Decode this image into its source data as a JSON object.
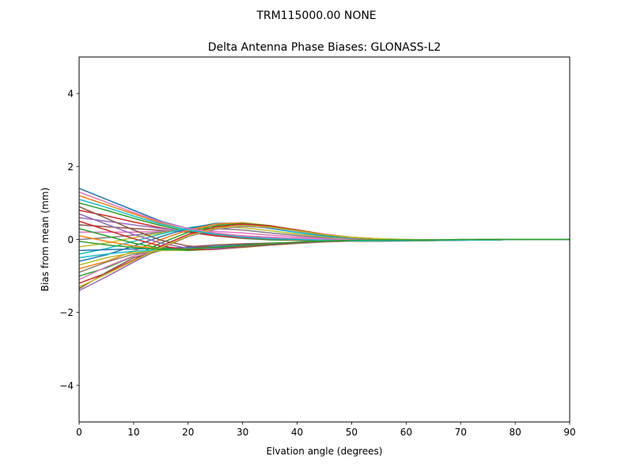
{
  "chart_data": {
    "type": "line",
    "suptitle": "TRM115000.00    NONE",
    "title": "Delta Antenna Phase Biases: GLONASS-L2",
    "xlabel": "Elvation angle (degrees)",
    "ylabel": "Bias from mean (mm)",
    "xlim": [
      0,
      90
    ],
    "ylim": [
      -5,
      5
    ],
    "xticks": [
      0,
      10,
      20,
      30,
      40,
      50,
      60,
      70,
      80,
      90
    ],
    "yticks": [
      -4,
      -2,
      0,
      2,
      4
    ],
    "xtick_labels": [
      "0",
      "10",
      "20",
      "30",
      "40",
      "50",
      "60",
      "70",
      "80",
      "90"
    ],
    "ytick_labels": [
      "−4",
      "−2",
      "0",
      "2",
      "4"
    ],
    "grid": false,
    "x": [
      0,
      5,
      10,
      15,
      20,
      25,
      30,
      35,
      40,
      45,
      50,
      55,
      60,
      65,
      70,
      75,
      80,
      85,
      90
    ],
    "series": [
      {
        "color": "#1f77b4",
        "values": [
          1.4,
          1.1,
          0.8,
          0.5,
          0.3,
          0.15,
          0.05,
          0.0,
          -0.02,
          -0.04,
          -0.05,
          -0.05,
          -0.04,
          -0.03,
          -0.02,
          -0.01,
          0.0,
          0.0,
          0.0
        ]
      },
      {
        "color": "#ff7f0e",
        "values": [
          1.2,
          0.95,
          0.7,
          0.45,
          0.25,
          0.12,
          0.04,
          0.0,
          -0.02,
          -0.03,
          -0.04,
          -0.04,
          -0.04,
          -0.03,
          -0.02,
          -0.01,
          0.0,
          0.0,
          0.0
        ]
      },
      {
        "color": "#2ca02c",
        "values": [
          1.0,
          0.8,
          0.58,
          0.38,
          0.22,
          0.1,
          0.03,
          -0.01,
          -0.02,
          -0.03,
          -0.04,
          -0.04,
          -0.03,
          -0.03,
          -0.02,
          -0.01,
          0.0,
          0.0,
          0.0
        ]
      },
      {
        "color": "#d62728",
        "values": [
          0.8,
          0.65,
          0.48,
          0.32,
          0.2,
          0.1,
          0.04,
          0.01,
          -0.01,
          -0.02,
          -0.03,
          -0.03,
          -0.03,
          -0.02,
          -0.02,
          -0.01,
          0.0,
          0.0,
          0.0
        ]
      },
      {
        "color": "#9467bd",
        "values": [
          0.6,
          0.5,
          0.4,
          0.3,
          0.22,
          0.14,
          0.08,
          0.04,
          0.01,
          -0.01,
          -0.02,
          -0.03,
          -0.03,
          -0.02,
          -0.02,
          -0.01,
          0.0,
          0.0,
          0.0
        ]
      },
      {
        "color": "#8c564b",
        "values": [
          0.4,
          0.35,
          0.3,
          0.25,
          0.2,
          0.15,
          0.1,
          0.06,
          0.03,
          0.01,
          -0.01,
          -0.02,
          -0.02,
          -0.02,
          -0.01,
          -0.01,
          0.0,
          0.0,
          0.0
        ]
      },
      {
        "color": "#e377c2",
        "values": [
          0.2,
          0.2,
          0.2,
          0.22,
          0.24,
          0.22,
          0.18,
          0.12,
          0.07,
          0.03,
          0.0,
          -0.01,
          -0.02,
          -0.02,
          -0.01,
          -0.01,
          0.0,
          0.0,
          0.0
        ]
      },
      {
        "color": "#7f7f7f",
        "values": [
          0.0,
          0.05,
          0.12,
          0.2,
          0.28,
          0.3,
          0.26,
          0.18,
          0.11,
          0.05,
          0.01,
          -0.01,
          -0.02,
          -0.02,
          -0.01,
          -0.01,
          0.0,
          0.0,
          0.0
        ]
      },
      {
        "color": "#bcbd22",
        "values": [
          -0.2,
          -0.1,
          0.05,
          0.18,
          0.3,
          0.36,
          0.32,
          0.24,
          0.15,
          0.07,
          0.02,
          -0.01,
          -0.02,
          -0.02,
          -0.01,
          -0.01,
          0.0,
          0.0,
          0.0
        ]
      },
      {
        "color": "#17becf",
        "values": [
          -0.4,
          -0.25,
          -0.05,
          0.15,
          0.32,
          0.42,
          0.4,
          0.3,
          0.19,
          0.09,
          0.03,
          0.0,
          -0.02,
          -0.02,
          -0.01,
          -0.01,
          0.0,
          0.0,
          0.0
        ]
      },
      {
        "color": "#1f77b4",
        "values": [
          -0.6,
          -0.42,
          -0.18,
          0.08,
          0.3,
          0.44,
          0.45,
          0.36,
          0.23,
          0.11,
          0.04,
          0.0,
          -0.02,
          -0.02,
          -0.01,
          -0.01,
          0.0,
          0.0,
          0.0
        ]
      },
      {
        "color": "#ff7f0e",
        "values": [
          -0.8,
          -0.6,
          -0.32,
          0.0,
          0.26,
          0.42,
          0.46,
          0.38,
          0.25,
          0.13,
          0.05,
          0.01,
          -0.01,
          -0.02,
          -0.01,
          -0.01,
          0.0,
          0.0,
          0.0
        ]
      },
      {
        "color": "#2ca02c",
        "values": [
          -1.0,
          -0.78,
          -0.46,
          -0.1,
          0.2,
          0.38,
          0.44,
          0.38,
          0.26,
          0.14,
          0.06,
          0.01,
          -0.01,
          -0.02,
          -0.01,
          -0.01,
          0.0,
          0.0,
          0.0
        ]
      },
      {
        "color": "#d62728",
        "values": [
          -1.2,
          -0.92,
          -0.56,
          -0.18,
          0.14,
          0.34,
          0.42,
          0.37,
          0.26,
          0.14,
          0.06,
          0.02,
          -0.01,
          -0.01,
          -0.01,
          0.0,
          0.0,
          0.0,
          0.0
        ]
      },
      {
        "color": "#9467bd",
        "values": [
          -1.4,
          -1.02,
          -0.62,
          -0.24,
          0.08,
          0.28,
          0.36,
          0.32,
          0.23,
          0.13,
          0.06,
          0.02,
          0.0,
          -0.01,
          -0.01,
          0.0,
          0.0,
          0.0,
          0.0
        ]
      },
      {
        "color": "#8c564b",
        "values": [
          -1.35,
          -0.9,
          -0.5,
          -0.3,
          -0.2,
          -0.15,
          -0.12,
          -0.1,
          -0.08,
          -0.06,
          -0.05,
          -0.04,
          -0.03,
          -0.02,
          -0.01,
          -0.01,
          0.0,
          0.0,
          0.0
        ]
      },
      {
        "color": "#e377c2",
        "values": [
          -1.1,
          -0.75,
          -0.45,
          -0.28,
          -0.24,
          -0.2,
          -0.16,
          -0.12,
          -0.09,
          -0.06,
          -0.04,
          -0.03,
          -0.02,
          -0.02,
          -0.01,
          -0.01,
          0.0,
          0.0,
          0.0
        ]
      },
      {
        "color": "#7f7f7f",
        "values": [
          -0.9,
          -0.62,
          -0.4,
          -0.3,
          -0.28,
          -0.24,
          -0.2,
          -0.15,
          -0.1,
          -0.06,
          -0.04,
          -0.03,
          -0.02,
          -0.02,
          -0.01,
          -0.01,
          0.0,
          0.0,
          0.0
        ]
      },
      {
        "color": "#bcbd22",
        "values": [
          -0.7,
          -0.5,
          -0.36,
          -0.3,
          -0.3,
          -0.27,
          -0.22,
          -0.16,
          -0.11,
          -0.07,
          -0.04,
          -0.03,
          -0.02,
          -0.02,
          -0.01,
          -0.01,
          0.0,
          0.0,
          0.0
        ]
      },
      {
        "color": "#17becf",
        "values": [
          -0.5,
          -0.4,
          -0.32,
          -0.28,
          -0.28,
          -0.25,
          -0.2,
          -0.15,
          -0.1,
          -0.06,
          -0.04,
          -0.03,
          -0.02,
          -0.02,
          -0.01,
          -0.01,
          0.0,
          0.0,
          0.0
        ]
      },
      {
        "color": "#1f77b4",
        "values": [
          -0.3,
          -0.28,
          -0.26,
          -0.24,
          -0.22,
          -0.19,
          -0.15,
          -0.11,
          -0.08,
          -0.05,
          -0.03,
          -0.02,
          -0.02,
          -0.01,
          -0.01,
          -0.01,
          0.0,
          0.0,
          0.0
        ]
      },
      {
        "color": "#ff7f0e",
        "values": [
          0.1,
          -0.05,
          -0.18,
          -0.26,
          -0.28,
          -0.24,
          -0.18,
          -0.12,
          -0.08,
          -0.05,
          -0.03,
          -0.02,
          -0.02,
          -0.01,
          -0.01,
          0.0,
          0.0,
          0.0,
          0.0
        ]
      },
      {
        "color": "#2ca02c",
        "values": [
          0.3,
          0.1,
          -0.1,
          -0.24,
          -0.3,
          -0.26,
          -0.2,
          -0.14,
          -0.09,
          -0.05,
          -0.03,
          -0.02,
          -0.02,
          -0.01,
          -0.01,
          0.0,
          0.0,
          0.0,
          0.0
        ]
      },
      {
        "color": "#d62728",
        "values": [
          0.5,
          0.26,
          0.02,
          -0.18,
          -0.28,
          -0.27,
          -0.21,
          -0.15,
          -0.1,
          -0.06,
          -0.03,
          -0.02,
          -0.02,
          -0.01,
          -0.01,
          0.0,
          0.0,
          0.0,
          0.0
        ]
      },
      {
        "color": "#9467bd",
        "values": [
          0.7,
          0.42,
          0.14,
          -0.1,
          -0.24,
          -0.26,
          -0.21,
          -0.15,
          -0.1,
          -0.06,
          -0.03,
          -0.02,
          -0.02,
          -0.01,
          -0.01,
          0.0,
          0.0,
          0.0,
          0.0
        ]
      },
      {
        "color": "#8c564b",
        "values": [
          0.9,
          0.58,
          0.26,
          -0.02,
          -0.18,
          -0.23,
          -0.2,
          -0.14,
          -0.09,
          -0.05,
          -0.03,
          -0.02,
          -0.01,
          -0.01,
          -0.01,
          0.0,
          0.0,
          0.0,
          0.0
        ]
      },
      {
        "color": "#e377c2",
        "values": [
          1.3,
          1.02,
          0.74,
          0.48,
          0.3,
          0.18,
          0.1,
          0.06,
          0.03,
          0.01,
          0.0,
          -0.01,
          -0.01,
          -0.01,
          0.0,
          0.0,
          0.0,
          0.0,
          0.0
        ]
      },
      {
        "color": "#bcbd22",
        "values": [
          -1.3,
          -0.95,
          -0.58,
          -0.22,
          0.1,
          0.3,
          0.38,
          0.34,
          0.24,
          0.13,
          0.06,
          0.02,
          0.0,
          -0.01,
          -0.01,
          0.0,
          0.0,
          0.0,
          0.0
        ]
      },
      {
        "color": "#17becf",
        "values": [
          1.1,
          0.88,
          0.64,
          0.42,
          0.26,
          0.14,
          0.06,
          0.02,
          0.0,
          -0.02,
          -0.03,
          -0.03,
          -0.03,
          -0.02,
          -0.02,
          -0.01,
          0.0,
          0.0,
          0.0
        ]
      },
      {
        "color": "#2ca02c",
        "values": [
          -0.05,
          -0.15,
          -0.22,
          -0.27,
          -0.26,
          -0.22,
          -0.16,
          -0.11,
          -0.07,
          -0.04,
          -0.02,
          -0.01,
          -0.01,
          -0.01,
          0.0,
          0.0,
          0.0,
          0.0,
          0.0
        ]
      }
    ]
  }
}
